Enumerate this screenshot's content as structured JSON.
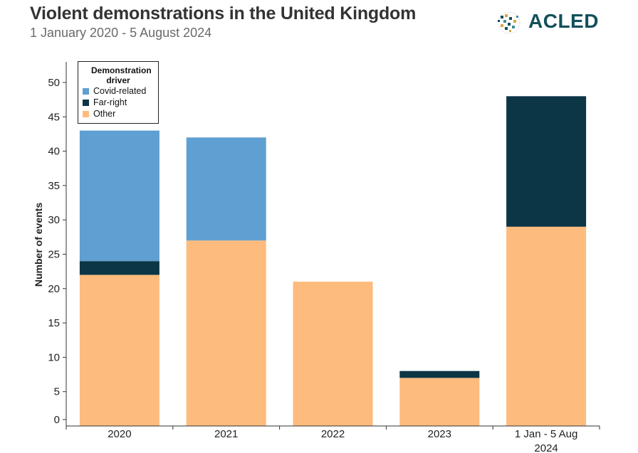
{
  "header": {
    "title": "Violent demonstrations in the United Kingdom",
    "subtitle": "1 January 2020 - 5 August 2024",
    "logo_text": "ACLED"
  },
  "chart_data": {
    "type": "bar",
    "stacked": true,
    "title": "Violent demonstrations in the United Kingdom",
    "subtitle": "1 January 2020 - 5 August 2024",
    "categories": [
      "2020",
      "2021",
      "2022",
      "2023",
      "1 Jan - 5 Aug 2024"
    ],
    "category_labels": [
      [
        "2020"
      ],
      [
        "2021"
      ],
      [
        "2022"
      ],
      [
        "2023"
      ],
      [
        "1 Jan - 5 Aug",
        "2024"
      ]
    ],
    "series": [
      {
        "name": "Other",
        "color": "#fdbb7d",
        "values": [
          22,
          27,
          21,
          7,
          29
        ]
      },
      {
        "name": "Far-right",
        "color": "#0c3646",
        "values": [
          2,
          0,
          0,
          1,
          19
        ]
      },
      {
        "name": "Covid-related",
        "color": "#5f9fd2",
        "values": [
          19,
          15,
          0,
          0,
          0
        ]
      }
    ],
    "xlabel": "",
    "ylabel": "Number of events",
    "ylim": [
      0,
      53
    ],
    "yticks": [
      0,
      5,
      10,
      15,
      20,
      25,
      30,
      35,
      40,
      45,
      50
    ],
    "legend": {
      "title": "Demonstration driver",
      "placement": "top-left",
      "entries": [
        {
          "name": "Covid-related",
          "color": "#5f9fd2"
        },
        {
          "name": "Far-right",
          "color": "#0c3646"
        },
        {
          "name": "Other",
          "color": "#fdbb7d"
        }
      ]
    },
    "grid": false
  }
}
